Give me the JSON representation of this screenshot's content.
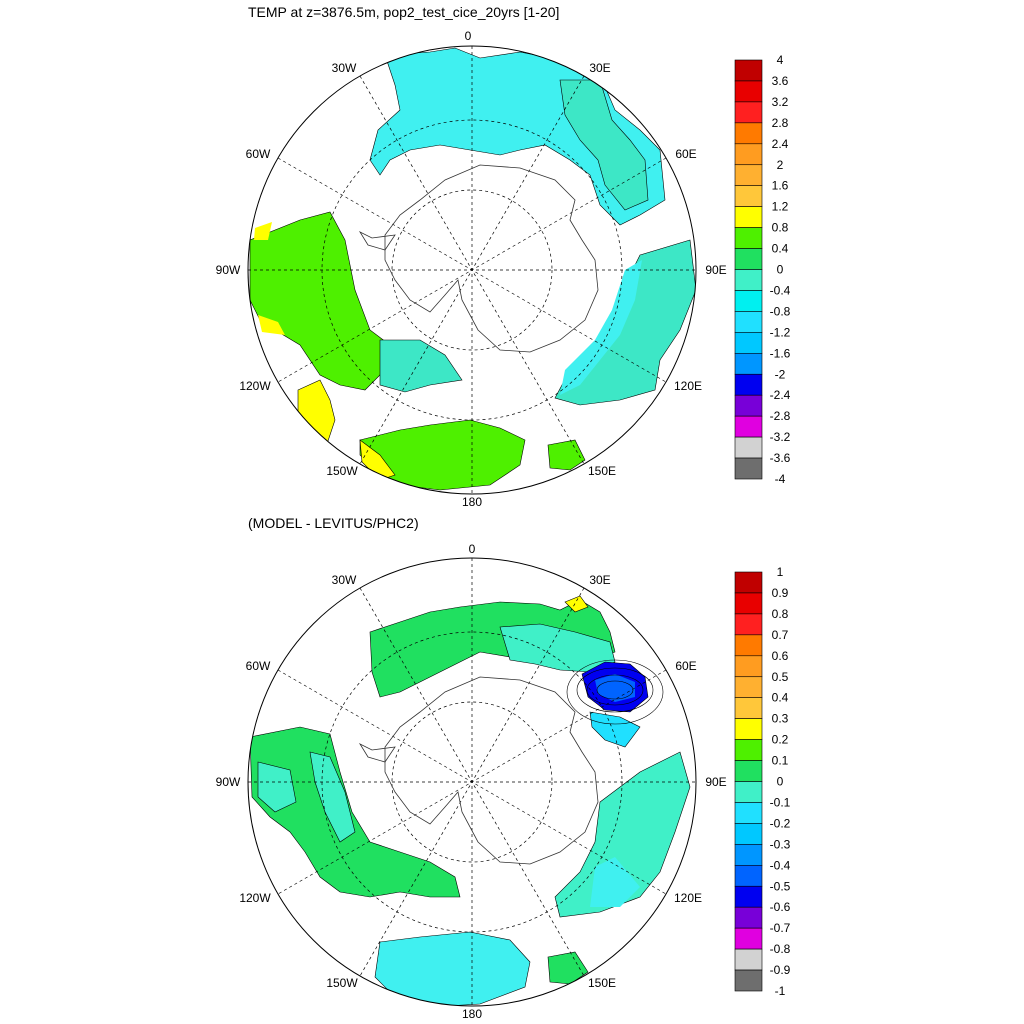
{
  "chart_data": [
    {
      "type": "polar-map",
      "title": "TEMP at z=3876.5m, pop2_test_cice_20yrs [1-20]",
      "projection": "south polar stereographic",
      "longitude_labels": [
        "0",
        "30E",
        "60E",
        "90E",
        "120E",
        "150E",
        "180",
        "150W",
        "120W",
        "90W",
        "60W",
        "30W"
      ],
      "colorbar": {
        "levels": [
          "4",
          "3.6",
          "3.2",
          "2.8",
          "2.4",
          "2",
          "1.6",
          "1.2",
          "0.8",
          "0.4",
          "0",
          "-0.4",
          "-0.8",
          "-1.2",
          "-1.6",
          "-2",
          "-2.4",
          "-2.8",
          "-3.2",
          "-3.6",
          "-4"
        ],
        "colors": [
          "#c00000",
          "#e80000",
          "#ff2020",
          "#ff7a00",
          "#ff9c20",
          "#ffb030",
          "#ffc73a",
          "#ffff00",
          "#4ef000",
          "#20e060",
          "#40f0c8",
          "#00f0f0",
          "#20e0ff",
          "#00c8ff",
          "#0096ff",
          "#0000f0",
          "#7800d8",
          "#e000e0",
          "#d2d2d2",
          "#6e6e6e"
        ]
      },
      "dominant_values": {
        "atlantic_indian_sector": "-0.4 to 0",
        "pacific_southeast": "0.4 to 0.8",
        "warmest_patches": "0.8 to 1.2"
      }
    },
    {
      "type": "polar-map",
      "title": "(MODEL - LEVITUS/PHC2)",
      "projection": "south polar stereographic",
      "longitude_labels": [
        "0",
        "30E",
        "60E",
        "90E",
        "120E",
        "150E",
        "180",
        "150W",
        "120W",
        "90W",
        "60W",
        "30W"
      ],
      "colorbar": {
        "levels": [
          "1",
          "0.9",
          "0.8",
          "0.7",
          "0.6",
          "0.5",
          "0.4",
          "0.3",
          "0.2",
          "0.1",
          "0",
          "-0.1",
          "-0.2",
          "-0.3",
          "-0.4",
          "-0.5",
          "-0.6",
          "-0.7",
          "-0.8",
          "-0.9",
          "-1"
        ],
        "colors": [
          "#c00000",
          "#e80000",
          "#ff2020",
          "#ff7a00",
          "#ff9c20",
          "#ffb030",
          "#ffc73a",
          "#ffff00",
          "#4ef000",
          "#20e060",
          "#40f0c8",
          "#20e0ff",
          "#00c8ff",
          "#0096ff",
          "#0064ff",
          "#0000f0",
          "#7800d8",
          "#e000e0",
          "#d2d2d2",
          "#6e6e6e"
        ]
      },
      "dominant_values": {
        "atlantic_sector": "0 to 0.1",
        "indian_sector_min": "-0.6 to -0.5",
        "pacific_sector": "-0.1 to 0"
      }
    }
  ]
}
